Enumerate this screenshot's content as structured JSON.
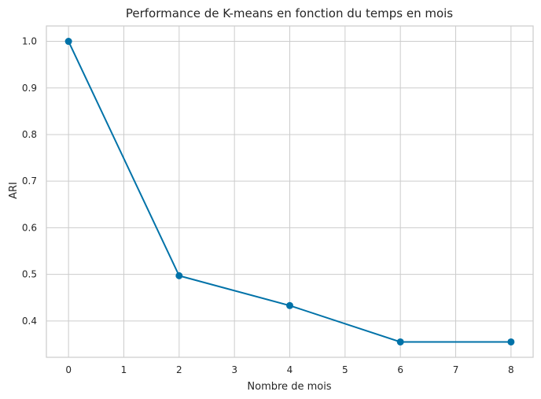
{
  "chart_data": {
    "type": "line",
    "title": "Performance de K-means en fonction du temps en mois",
    "xlabel": "Nombre de mois",
    "ylabel": "ARI",
    "xlim": [
      -0.4,
      8.4
    ],
    "ylim": [
      0.322,
      1.033
    ],
    "x_ticks": [
      0,
      1,
      2,
      3,
      4,
      5,
      6,
      7,
      8
    ],
    "y_ticks": [
      0.4,
      0.5,
      0.6,
      0.7,
      0.8,
      0.9,
      1.0
    ],
    "grid": true,
    "series": [
      {
        "x": [
          0,
          2,
          4,
          6,
          8
        ],
        "values": [
          1.0,
          0.497,
          0.433,
          0.355,
          0.355
        ],
        "color": "#0072a8",
        "marker": "circle"
      }
    ]
  }
}
